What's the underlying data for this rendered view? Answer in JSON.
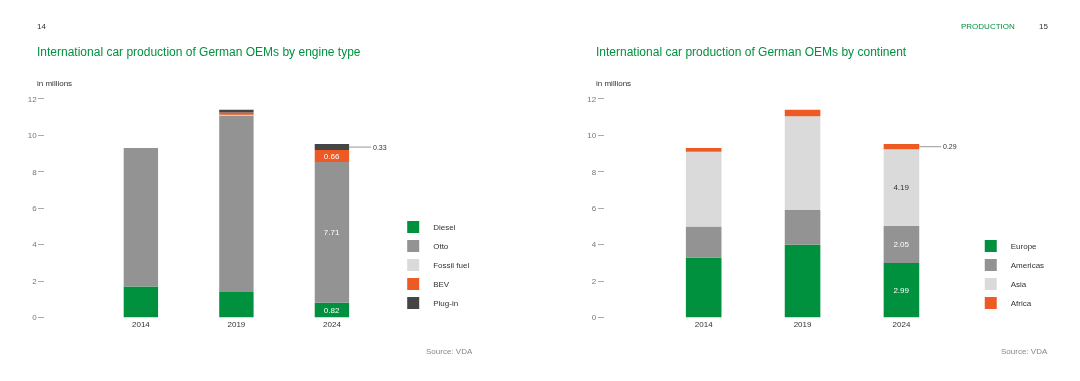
{
  "chart_data": [
    {
      "type": "bar",
      "title": "International car production of German OEMs by engine type",
      "ylabel": "in millions",
      "annotations": [
        "14",
        "Source: VDA"
      ],
      "categories": [
        "2014",
        "2019",
        "2024"
      ],
      "stacked": true,
      "ylim": [
        0,
        12
      ],
      "yticks": [
        0,
        2,
        4,
        6,
        8,
        10,
        12
      ],
      "legend": "bottom right",
      "series": [
        {
          "name": "Diesel",
          "color": "#00913f",
          "values": [
            1.7,
            1.4,
            0.82
          ],
          "value_labels": [
            null,
            null,
            "0.82"
          ]
        },
        {
          "name": "Otto",
          "color": "#929392",
          "values": [
            7.6,
            9.7,
            7.71
          ],
          "value_labels": [
            null,
            null,
            "7.71"
          ]
        },
        {
          "name": "Fossil fuel",
          "color": "#d9dad9",
          "values": [
            0,
            0.05,
            0
          ],
          "value_labels": [
            null,
            null,
            null
          ]
        },
        {
          "name": "BEV",
          "color": "#ee5a24",
          "values": [
            0,
            0.1,
            0.66
          ],
          "value_labels": [
            null,
            null,
            "0.66"
          ]
        },
        {
          "name": "Plug-in",
          "color": "#454545",
          "values": [
            0,
            0.15,
            0.33
          ],
          "value_labels": [
            null,
            null,
            "0.33"
          ]
        }
      ]
    },
    {
      "type": "bar",
      "title": "International car production of German OEMs by continent",
      "ylabel": "in millions",
      "annotations": [
        "PRODUCTION",
        "15",
        "Source: VDA"
      ],
      "categories": [
        "2014",
        "2019",
        "2024"
      ],
      "stacked": true,
      "ylim": [
        0,
        12
      ],
      "yticks": [
        0,
        2,
        4,
        6,
        8,
        10,
        12
      ],
      "legend": "bottom right",
      "series": [
        {
          "name": "Europe",
          "color": "#00913f",
          "values": [
            3.3,
            4.0,
            2.99
          ],
          "value_labels": [
            null,
            null,
            "2.99"
          ]
        },
        {
          "name": "Americas",
          "color": "#929392",
          "values": [
            1.7,
            1.9,
            2.05
          ],
          "value_labels": [
            null,
            null,
            "2.05"
          ]
        },
        {
          "name": "Asia",
          "color": "#d9dad9",
          "values": [
            4.1,
            5.15,
            4.19
          ],
          "value_labels": [
            null,
            null,
            "4.19"
          ]
        },
        {
          "name": "Africa",
          "color": "#ee5a24",
          "values": [
            0.2,
            0.35,
            0.29
          ],
          "value_labels": [
            null,
            null,
            "0.29"
          ]
        }
      ]
    }
  ]
}
